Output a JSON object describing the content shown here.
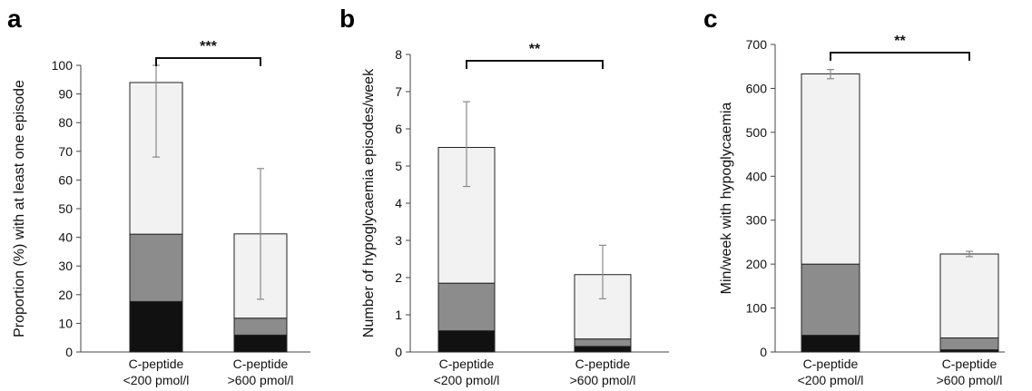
{
  "chart_data": [
    {
      "panel": "a",
      "type": "bar",
      "stacked": true,
      "ylabel": "Proportion (%) with at least one episode",
      "yticks": [
        0,
        10,
        20,
        30,
        40,
        50,
        60,
        70,
        80,
        90,
        100
      ],
      "ylim": [
        0,
        100
      ],
      "categories": [
        [
          "C-peptide",
          "<200 pmol/l"
        ],
        [
          "C-peptide",
          ">600 pmol/l"
        ]
      ],
      "series": [
        {
          "color": "#111111",
          "values": [
            17.6,
            5.9
          ]
        },
        {
          "color": "#8c8c8c",
          "values": [
            23.5,
            5.9
          ]
        },
        {
          "color": "#f2f2f2",
          "values": [
            52.9,
            29.4
          ]
        }
      ],
      "totals": [
        94,
        41.2
      ],
      "error": [
        [
          68,
          100
        ],
        [
          18.4,
          64
        ]
      ],
      "significance": "***"
    },
    {
      "panel": "b",
      "type": "bar",
      "stacked": true,
      "ylabel": "Number of hypoglycaemia episodes/week",
      "yticks": [
        0,
        1,
        2,
        3,
        4,
        5,
        6,
        7,
        8
      ],
      "ylim": [
        0,
        8
      ],
      "categories": [
        [
          "C-peptide",
          "<200 pmol/l"
        ],
        [
          "C-peptide",
          ">600 pmol/l"
        ]
      ],
      "series": [
        {
          "color": "#111111",
          "values": [
            0.57,
            0.15
          ]
        },
        {
          "color": "#8c8c8c",
          "values": [
            1.28,
            0.2
          ]
        },
        {
          "color": "#f2f2f2",
          "values": [
            3.65,
            1.73
          ]
        }
      ],
      "totals": [
        5.5,
        2.08
      ],
      "error": [
        [
          4.45,
          6.73
        ],
        [
          1.43,
          2.87
        ]
      ],
      "significance": "**"
    },
    {
      "panel": "c",
      "type": "bar",
      "stacked": true,
      "ylabel": "Min/week with hypoglycaemia",
      "yticks": [
        0,
        100,
        200,
        300,
        400,
        500,
        600,
        700
      ],
      "ylim": [
        0,
        700
      ],
      "categories": [
        [
          "C-peptide",
          "<200 pmol/l"
        ],
        [
          "C-peptide",
          ">600 pmol/l"
        ]
      ],
      "series": [
        {
          "color": "#111111",
          "values": [
            38,
            5
          ]
        },
        {
          "color": "#8c8c8c",
          "values": [
            162,
            27
          ]
        },
        {
          "color": "#f2f2f2",
          "values": [
            433,
            191
          ]
        }
      ],
      "totals": [
        633,
        223
      ],
      "error": [
        [
          622,
          643
        ],
        [
          217,
          229
        ]
      ],
      "significance": "**"
    }
  ]
}
